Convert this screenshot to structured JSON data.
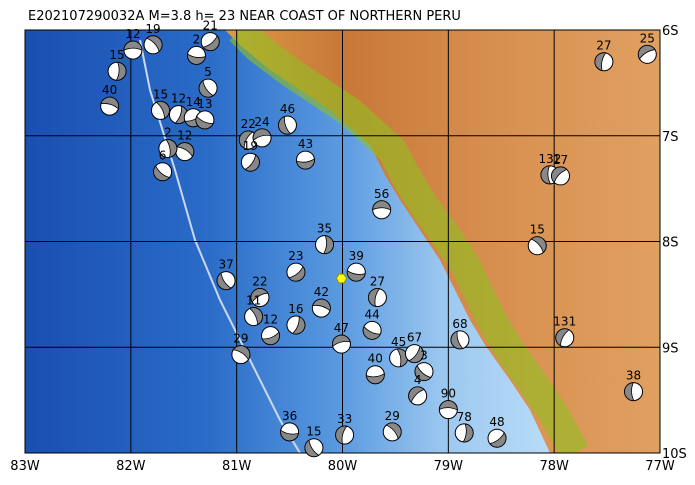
{
  "title": "E202107290032A M=3.8 h= 23 NEAR COAST OF NORTHERN PERU",
  "map": {
    "lonlim": [
      -83,
      -77
    ],
    "latlim": [
      -6,
      -10
    ],
    "lonticks": [
      {
        "value": -83,
        "label": "83W"
      },
      {
        "value": -82,
        "label": "82W"
      },
      {
        "value": -81,
        "label": "81W"
      },
      {
        "value": -80,
        "label": "80W"
      },
      {
        "value": -79,
        "label": "79W"
      },
      {
        "value": -78,
        "label": "78W"
      },
      {
        "value": -77,
        "label": "77W"
      }
    ],
    "latticks": [
      {
        "value": -6,
        "label": "6S"
      },
      {
        "value": -7,
        "label": "7S"
      },
      {
        "value": -8,
        "label": "8S"
      },
      {
        "value": -9,
        "label": "9S"
      },
      {
        "value": -10,
        "label": "10S"
      }
    ],
    "epicenter": {
      "lon": -80.01,
      "lat": -8.35
    },
    "events": [
      {
        "label": "12",
        "lon": -81.98,
        "lat": -6.19
      },
      {
        "label": "19",
        "lon": -81.79,
        "lat": -6.14
      },
      {
        "label": "15",
        "lon": -82.13,
        "lat": -6.39
      },
      {
        "label": "21",
        "lon": -81.25,
        "lat": -6.11
      },
      {
        "label": "2",
        "lon": -81.38,
        "lat": -6.24
      },
      {
        "label": "5",
        "lon": -81.27,
        "lat": -6.55
      },
      {
        "label": "27",
        "lon": -77.53,
        "lat": -6.3
      },
      {
        "label": "25",
        "lon": -77.12,
        "lat": -6.23
      },
      {
        "label": "40",
        "lon": -82.2,
        "lat": -6.72
      },
      {
        "label": "15",
        "lon": -81.72,
        "lat": -6.76
      },
      {
        "label": "12",
        "lon": -81.55,
        "lat": -6.8
      },
      {
        "label": "14",
        "lon": -81.41,
        "lat": -6.83
      },
      {
        "label": "13",
        "lon": -81.3,
        "lat": -6.85
      },
      {
        "label": "46",
        "lon": -80.52,
        "lat": -6.9
      },
      {
        "label": "22",
        "lon": -80.89,
        "lat": -7.04
      },
      {
        "label": "24",
        "lon": -80.76,
        "lat": -7.02
      },
      {
        "label": "12",
        "lon": -81.49,
        "lat": -7.15
      },
      {
        "label": "2",
        "lon": -81.65,
        "lat": -7.12
      },
      {
        "label": "19",
        "lon": -80.87,
        "lat": -7.25
      },
      {
        "label": "43",
        "lon": -80.35,
        "lat": -7.23
      },
      {
        "label": "6",
        "lon": -81.7,
        "lat": -7.34
      },
      {
        "label": "132",
        "lon": -78.04,
        "lat": -7.37
      },
      {
        "label": "17",
        "lon": -77.94,
        "lat": -7.38
      },
      {
        "label": "56",
        "lon": -79.63,
        "lat": -7.7
      },
      {
        "label": "15",
        "lon": -78.16,
        "lat": -8.04
      },
      {
        "label": "35",
        "lon": -80.17,
        "lat": -8.03
      },
      {
        "label": "23",
        "lon": -80.44,
        "lat": -8.29
      },
      {
        "label": "39",
        "lon": -79.87,
        "lat": -8.29
      },
      {
        "label": "37",
        "lon": -81.1,
        "lat": -8.37
      },
      {
        "label": "27",
        "lon": -79.67,
        "lat": -8.53
      },
      {
        "label": "22",
        "lon": -80.78,
        "lat": -8.53
      },
      {
        "label": "42",
        "lon": -80.2,
        "lat": -8.63
      },
      {
        "label": "11",
        "lon": -80.84,
        "lat": -8.71
      },
      {
        "label": "16",
        "lon": -80.44,
        "lat": -8.79
      },
      {
        "label": "12",
        "lon": -80.68,
        "lat": -8.89
      },
      {
        "label": "44",
        "lon": -79.72,
        "lat": -8.84
      },
      {
        "label": "68",
        "lon": -78.89,
        "lat": -8.93
      },
      {
        "label": "131",
        "lon": -77.9,
        "lat": -8.91
      },
      {
        "label": "47",
        "lon": -80.01,
        "lat": -8.97
      },
      {
        "label": "29",
        "lon": -80.96,
        "lat": -9.07
      },
      {
        "label": "45",
        "lon": -79.47,
        "lat": -9.1
      },
      {
        "label": "67",
        "lon": -79.32,
        "lat": -9.06
      },
      {
        "label": "40",
        "lon": -79.69,
        "lat": -9.26
      },
      {
        "label": "3",
        "lon": -79.23,
        "lat": -9.23
      },
      {
        "label": "38",
        "lon": -77.25,
        "lat": -9.42
      },
      {
        "label": "4",
        "lon": -79.29,
        "lat": -9.46
      },
      {
        "label": "90",
        "lon": -79.0,
        "lat": -9.59
      },
      {
        "label": "29",
        "lon": -79.53,
        "lat": -9.8
      },
      {
        "label": "78",
        "lon": -78.85,
        "lat": -9.81
      },
      {
        "label": "48",
        "lon": -78.54,
        "lat": -9.86
      },
      {
        "label": "36",
        "lon": -80.5,
        "lat": -9.8
      },
      {
        "label": "15",
        "lon": -80.27,
        "lat": -9.95
      },
      {
        "label": "33",
        "lon": -79.98,
        "lat": -9.83
      }
    ]
  }
}
